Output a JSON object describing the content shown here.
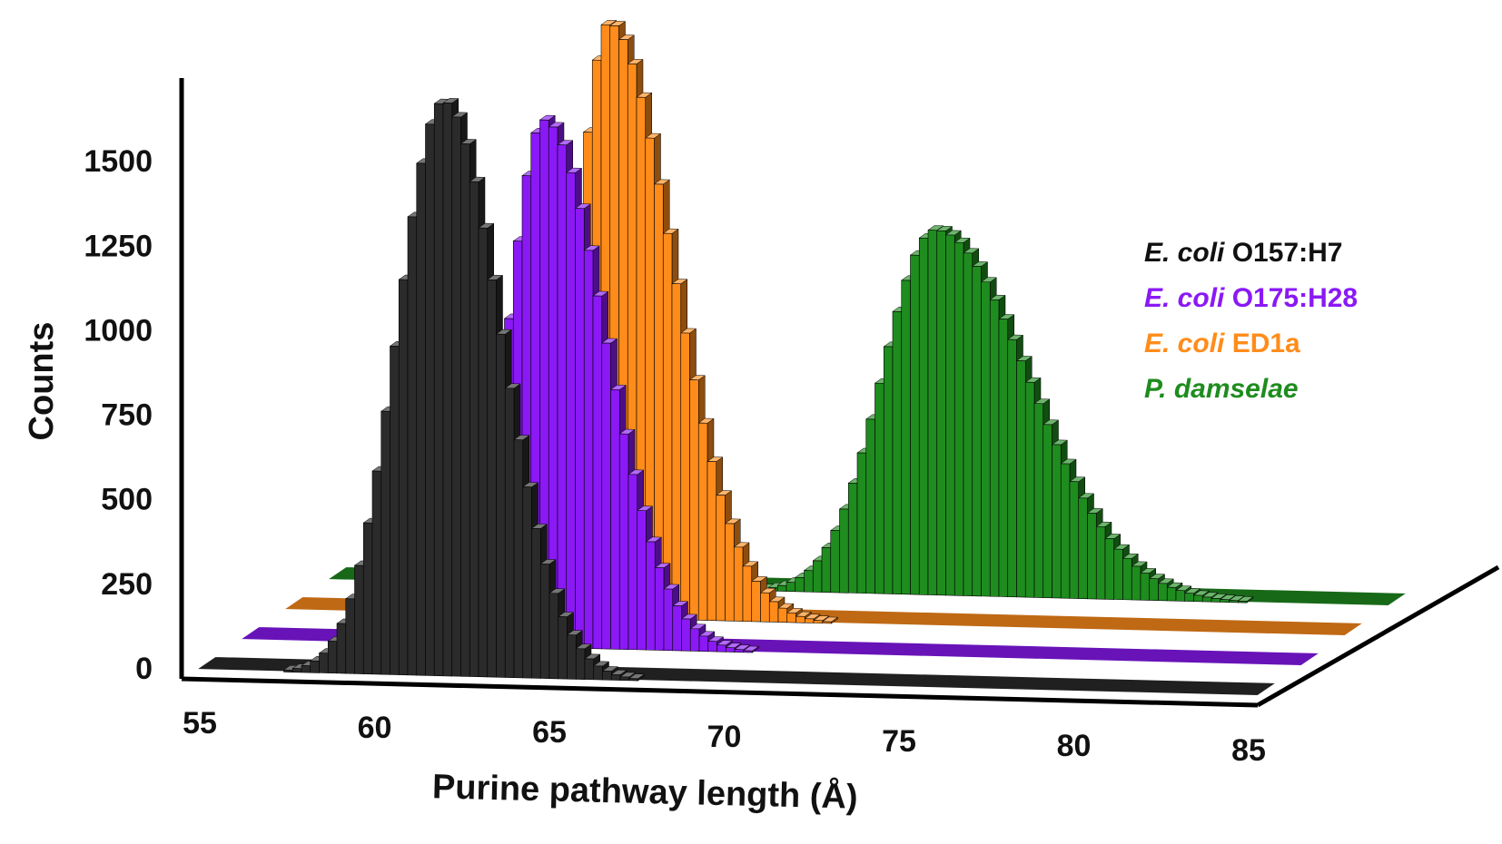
{
  "chart_data": {
    "type": "histogram-3d",
    "title": "",
    "xlabel": "Purine pathway length (Å)",
    "ylabel": "Counts",
    "xlim": [
      55,
      85
    ],
    "ylim": [
      0,
      1750
    ],
    "x_ticks": [
      "55",
      "60",
      "65",
      "70",
      "75",
      "80",
      "85"
    ],
    "y_ticks": [
      "0",
      "250",
      "500",
      "750",
      "1000",
      "1250",
      "1500"
    ],
    "legend_position": "right",
    "grid": false,
    "series": [
      {
        "name_italic": "E. coli",
        "name_rest": " O157:H7",
        "color": "#2b2b2b",
        "label_color_italic": "#111111",
        "label_color_rest": "#111111",
        "peak_x": 62.0,
        "peak_count": 1700,
        "sigma_left": 1.3,
        "sigma_right": 1.6
      },
      {
        "name_italic": "E. coli",
        "name_rest": " O175:H28",
        "color": "#8a19f5",
        "label_color_italic": "#8a19f5",
        "label_color_rest": "#8a19f5",
        "peak_x": 63.6,
        "peak_count": 1560,
        "sigma_left": 1.0,
        "sigma_right": 1.7
      },
      {
        "name_italic": "E. coli",
        "name_rest": " ED1a",
        "color": "#ff8c1a",
        "label_color_italic": "#ff8c1a",
        "label_color_rest": "#ff8c1a",
        "peak_x": 64.2,
        "peak_count": 1760,
        "sigma_left": 0.9,
        "sigma_right": 1.8
      },
      {
        "name_italic": "P. damselae",
        "name_rest": "",
        "color": "#1e8c1e",
        "label_color_italic": "#1e8c1e",
        "label_color_rest": "#1e8c1e",
        "peak_x": 72.2,
        "peak_count": 1080,
        "sigma_left": 1.5,
        "sigma_right": 2.6
      }
    ]
  }
}
